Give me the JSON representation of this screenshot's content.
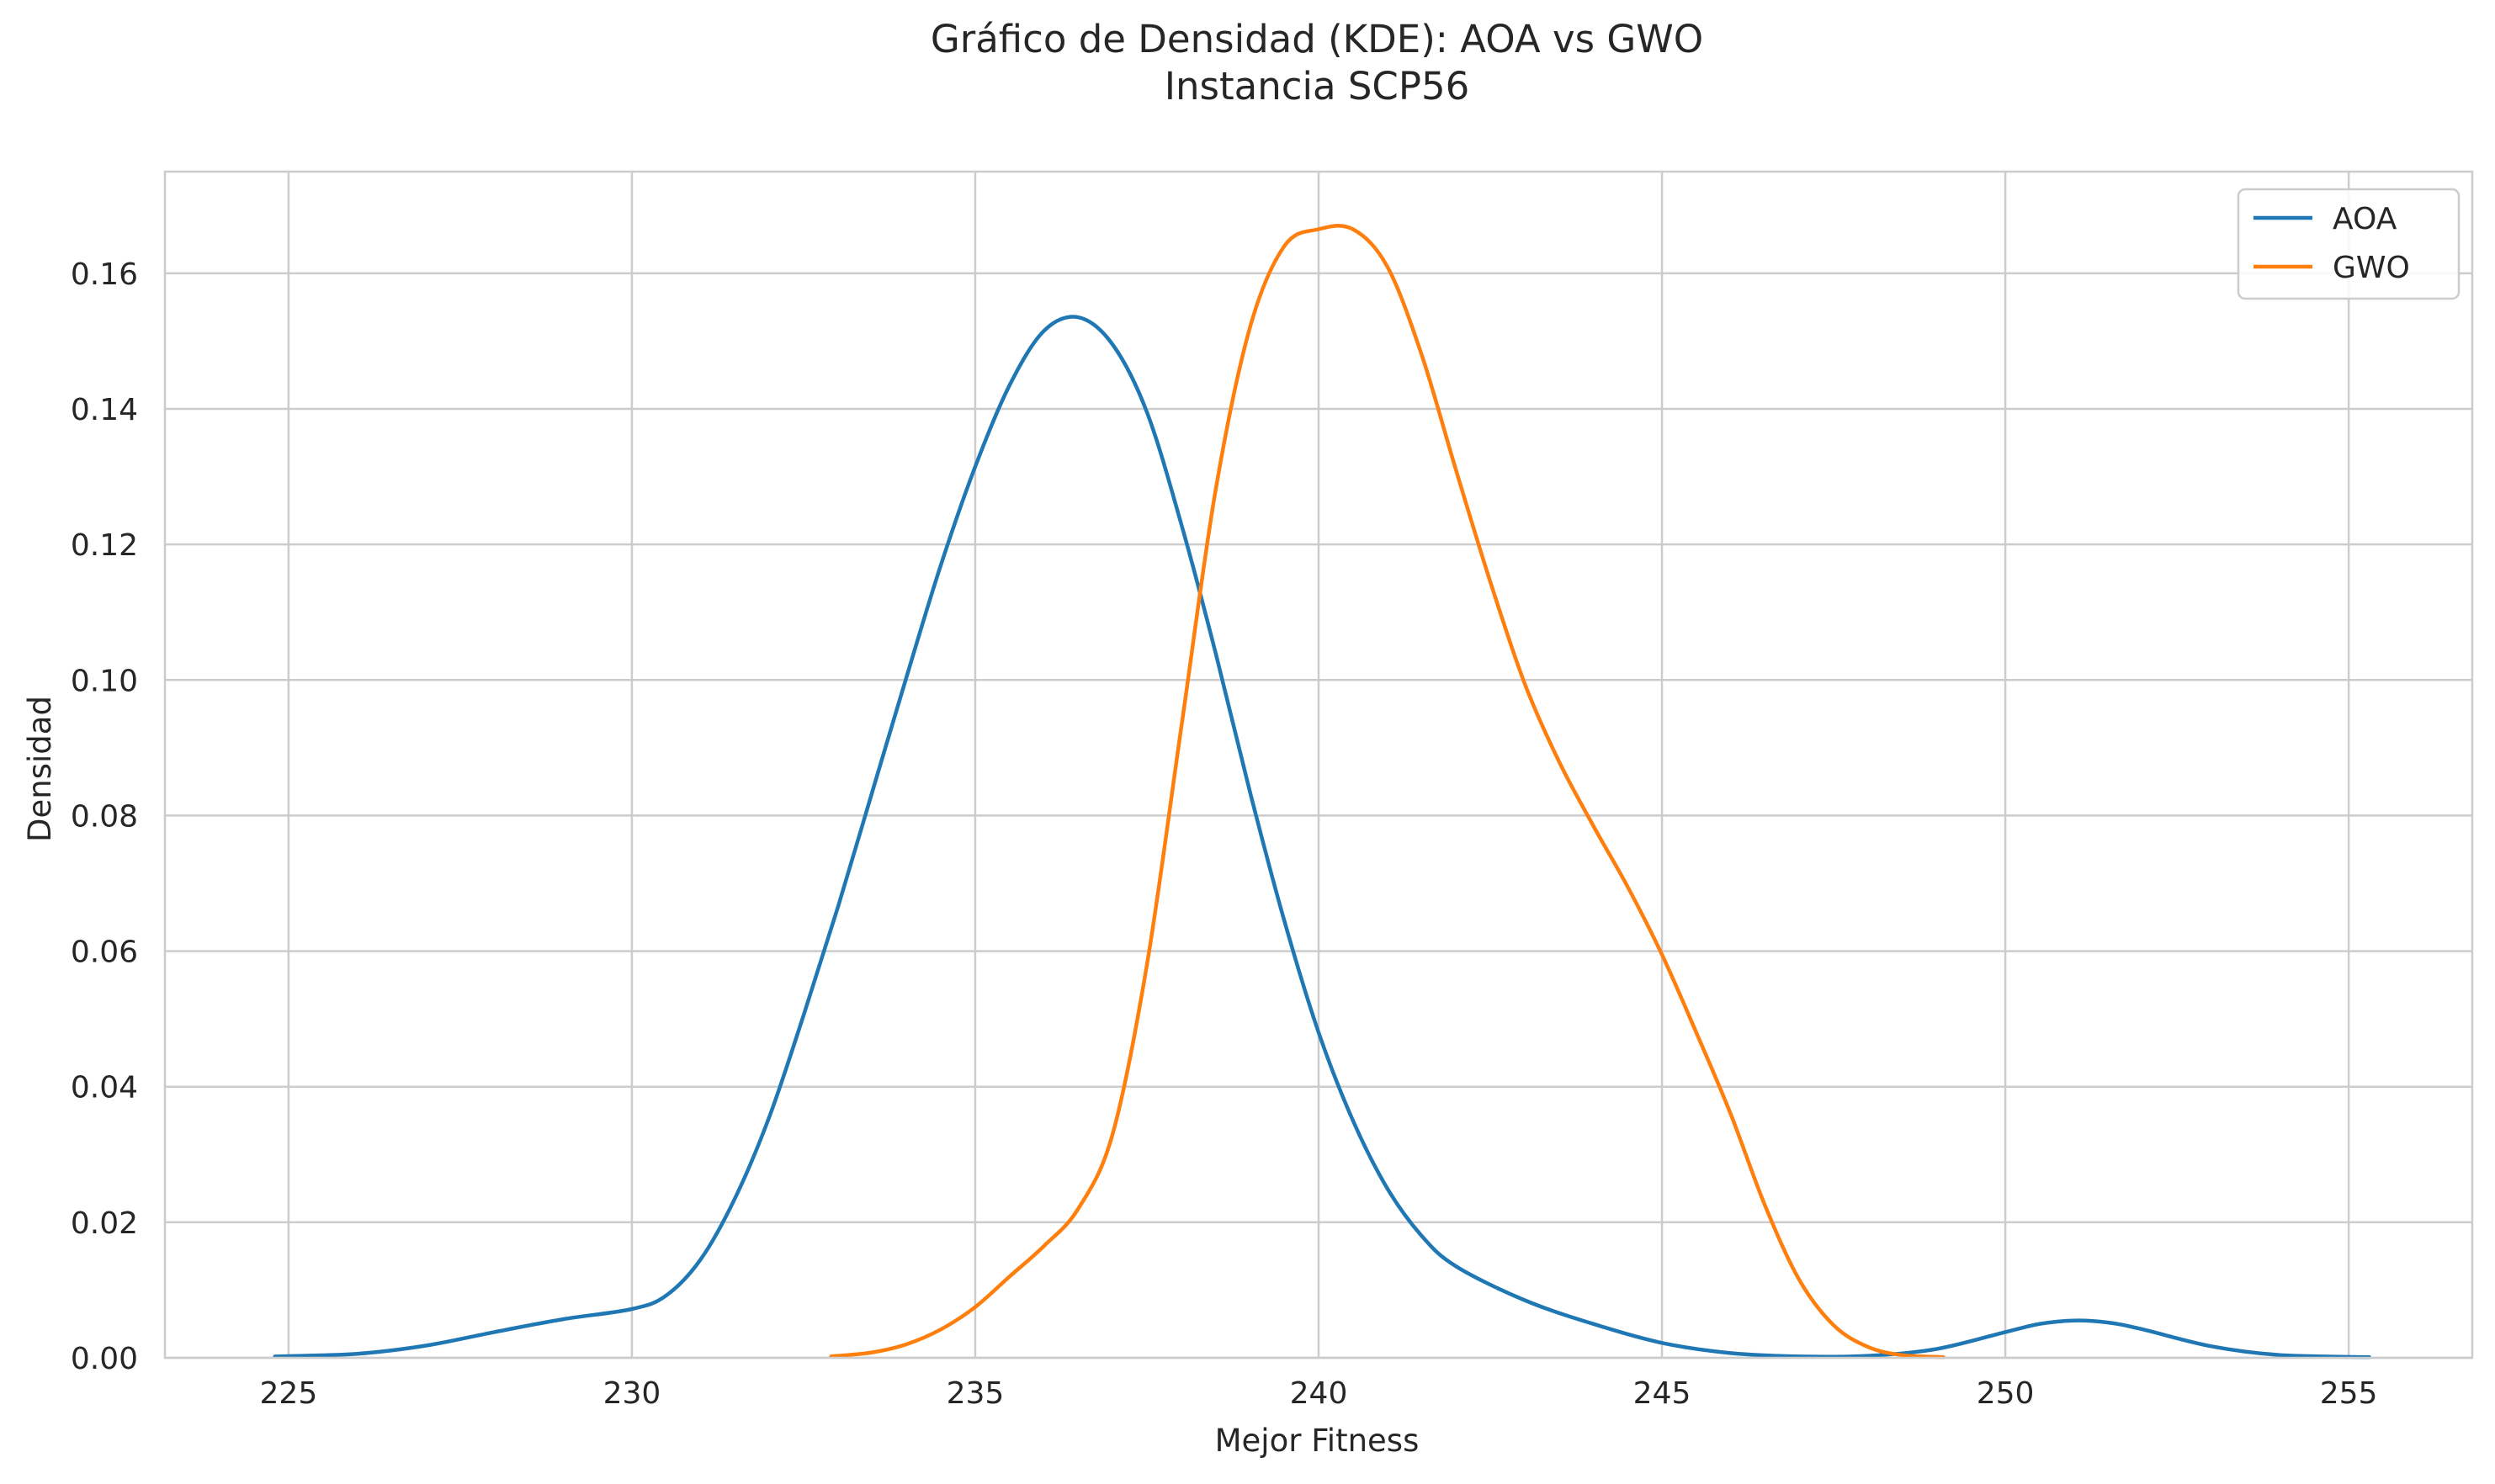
{
  "chart_data": {
    "type": "line",
    "title": "Gráfico de Densidad (KDE): AOA vs GWO",
    "subtitle": "Instancia SCP56",
    "xlabel": "Mejor Fitness",
    "ylabel": "Densidad",
    "xlim": [
      223.2,
      256.8
    ],
    "ylim": [
      0,
      0.175
    ],
    "xticks": [
      225,
      230,
      235,
      240,
      245,
      250,
      255
    ],
    "xtick_labels": [
      "225",
      "230",
      "235",
      "240",
      "245",
      "250",
      "255"
    ],
    "yticks": [
      0,
      0.02,
      0.04,
      0.06,
      0.08,
      0.1,
      0.12,
      0.14,
      0.16
    ],
    "ytick_labels": [
      "0.00",
      "0.02",
      "0.04",
      "0.06",
      "0.08",
      "0.10",
      "0.12",
      "0.14",
      "0.16"
    ],
    "grid": true,
    "legend_position": "top-right",
    "series": [
      {
        "name": "AOA",
        "color": "#1f77b4",
        "x": [
          224.8,
          226.0,
          227.0,
          228.0,
          229.0,
          230.0,
          230.5,
          231.0,
          231.5,
          232.0,
          232.5,
          233.0,
          233.5,
          234.0,
          234.5,
          235.0,
          235.5,
          236.0,
          236.5,
          237.0,
          237.5,
          238.0,
          238.5,
          239.0,
          239.5,
          240.0,
          240.5,
          241.0,
          241.5,
          242.0,
          243.0,
          244.0,
          245.0,
          246.0,
          247.0,
          248.0,
          249.0,
          250.0,
          250.5,
          251.0,
          251.5,
          252.0,
          253.0,
          254.0,
          255.3
        ],
        "y": [
          0.0002,
          0.0006,
          0.0018,
          0.0038,
          0.0057,
          0.0072,
          0.0092,
          0.0145,
          0.0235,
          0.0355,
          0.0505,
          0.0665,
          0.0835,
          0.1005,
          0.117,
          0.1315,
          0.1435,
          0.1515,
          0.1535,
          0.1495,
          0.1395,
          0.123,
          0.104,
          0.0835,
          0.0645,
          0.048,
          0.035,
          0.025,
          0.018,
          0.0135,
          0.0085,
          0.005,
          0.0022,
          0.0007,
          0.0002,
          0.0003,
          0.0013,
          0.0038,
          0.005,
          0.0055,
          0.0052,
          0.0042,
          0.0017,
          0.0004,
          0.0001
        ]
      },
      {
        "name": "GWO",
        "color": "#ff7f0e",
        "x": [
          232.9,
          233.5,
          234.0,
          234.5,
          235.0,
          235.5,
          236.0,
          236.5,
          237.0,
          237.5,
          238.0,
          238.5,
          239.0,
          239.5,
          240.0,
          240.5,
          241.0,
          241.5,
          242.0,
          242.5,
          243.0,
          243.5,
          244.0,
          244.5,
          245.0,
          245.5,
          246.0,
          246.5,
          247.0,
          247.5,
          248.0,
          248.5,
          249.1
        ],
        "y": [
          0.0002,
          0.0008,
          0.002,
          0.0042,
          0.0075,
          0.012,
          0.0165,
          0.022,
          0.033,
          0.058,
          0.093,
          0.128,
          0.152,
          0.164,
          0.1665,
          0.1665,
          0.161,
          0.148,
          0.131,
          0.1145,
          0.0995,
          0.088,
          0.0785,
          0.0695,
          0.0595,
          0.048,
          0.036,
          0.0225,
          0.0115,
          0.0048,
          0.0016,
          0.0004,
          0.0001
        ]
      }
    ]
  }
}
